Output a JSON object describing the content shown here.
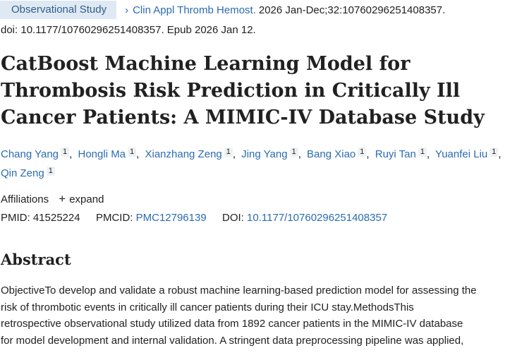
{
  "header": {
    "badge": "Observational Study",
    "chevron": "›",
    "journal": "Clin Appl Thromb Hemost.",
    "citation": "2026 Jan-Dec;32:10760296251408357.",
    "doi_line": "doi: 10.1177/10760296251408357. Epub 2026 Jan 12."
  },
  "title": "CatBoost Machine Learning Model for Thrombosis Risk Prediction in Critically Ill Cancer Patients: A MIMIC-IV Database Study",
  "authors": [
    {
      "name": "Chang Yang",
      "aff": "1"
    },
    {
      "name": "Hongli Ma",
      "aff": "1"
    },
    {
      "name": "Xianzhang Zeng",
      "aff": "1"
    },
    {
      "name": "Jing Yang",
      "aff": "1"
    },
    {
      "name": "Bang Xiao",
      "aff": "1"
    },
    {
      "name": "Ruyi Tan",
      "aff": "1"
    },
    {
      "name": "Yuanfei Liu",
      "aff": "1"
    },
    {
      "name": "Qin Zeng",
      "aff": "1"
    }
  ],
  "affiliations": {
    "label": "Affiliations",
    "expand_icon": "+",
    "expand_label": "expand"
  },
  "identifiers": {
    "pmid_label": "PMID:",
    "pmid": "41525224",
    "pmcid_label": "PMCID:",
    "pmcid": "PMC12796139",
    "doi_label": "DOI:",
    "doi": "10.1177/10760296251408357"
  },
  "abstract": {
    "heading": "Abstract",
    "lines": [
      "ObjectiveTo develop and validate a robust machine learning-based prediction model for assessing the",
      "risk of thrombotic events in critically ill cancer patients during their ICU stay.MethodsThis",
      "retrospective observational study utilized data from 1892 cancer patients in the MIMIC-IV database",
      "for model development and internal validation. A stringent data preprocessing pipeline was applied,"
    ]
  }
}
